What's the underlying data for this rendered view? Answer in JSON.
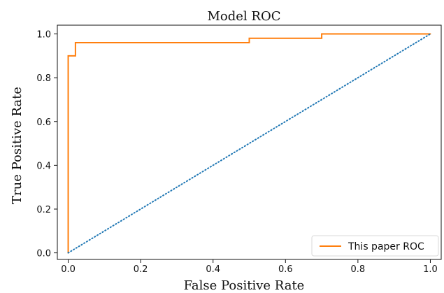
{
  "chart_data": {
    "type": "line",
    "title": "Model ROC",
    "xlabel": "False Positive Rate",
    "ylabel": "True Positive Rate",
    "xlim": [
      -0.03,
      1.03
    ],
    "ylim": [
      -0.03,
      1.04
    ],
    "x_ticks": [
      0.0,
      0.2,
      0.4,
      0.6,
      0.8,
      1.0
    ],
    "y_ticks": [
      0.0,
      0.2,
      0.4,
      0.6,
      0.8,
      1.0
    ],
    "x_tick_labels": [
      "0.0",
      "0.2",
      "0.4",
      "0.6",
      "0.8",
      "1.0"
    ],
    "y_tick_labels": [
      "0.0",
      "0.2",
      "0.4",
      "0.6",
      "0.8",
      "1.0"
    ],
    "grid": false,
    "legend": {
      "placement": "bottom-right",
      "entries": [
        "This paper ROC"
      ]
    },
    "series": [
      {
        "name": "This paper ROC",
        "style": "solid",
        "color": "#ff7f0e",
        "x": [
          0.0,
          0.0,
          0.0,
          0.02,
          0.02,
          0.5,
          0.5,
          0.7,
          0.7,
          1.0
        ],
        "y": [
          0.0,
          0.0,
          0.9,
          0.9,
          0.96,
          0.96,
          0.98,
          0.98,
          1.0,
          1.0
        ]
      },
      {
        "name": "",
        "style": "dotted",
        "color": "#1f77b4",
        "x": [
          0.0,
          1.0
        ],
        "y": [
          0.0,
          1.0
        ]
      }
    ]
  },
  "colors": {
    "axis": "#111111",
    "roc": "#ff7f0e",
    "baseline": "#1f77b4",
    "legend_border": "#d8d8d8"
  }
}
